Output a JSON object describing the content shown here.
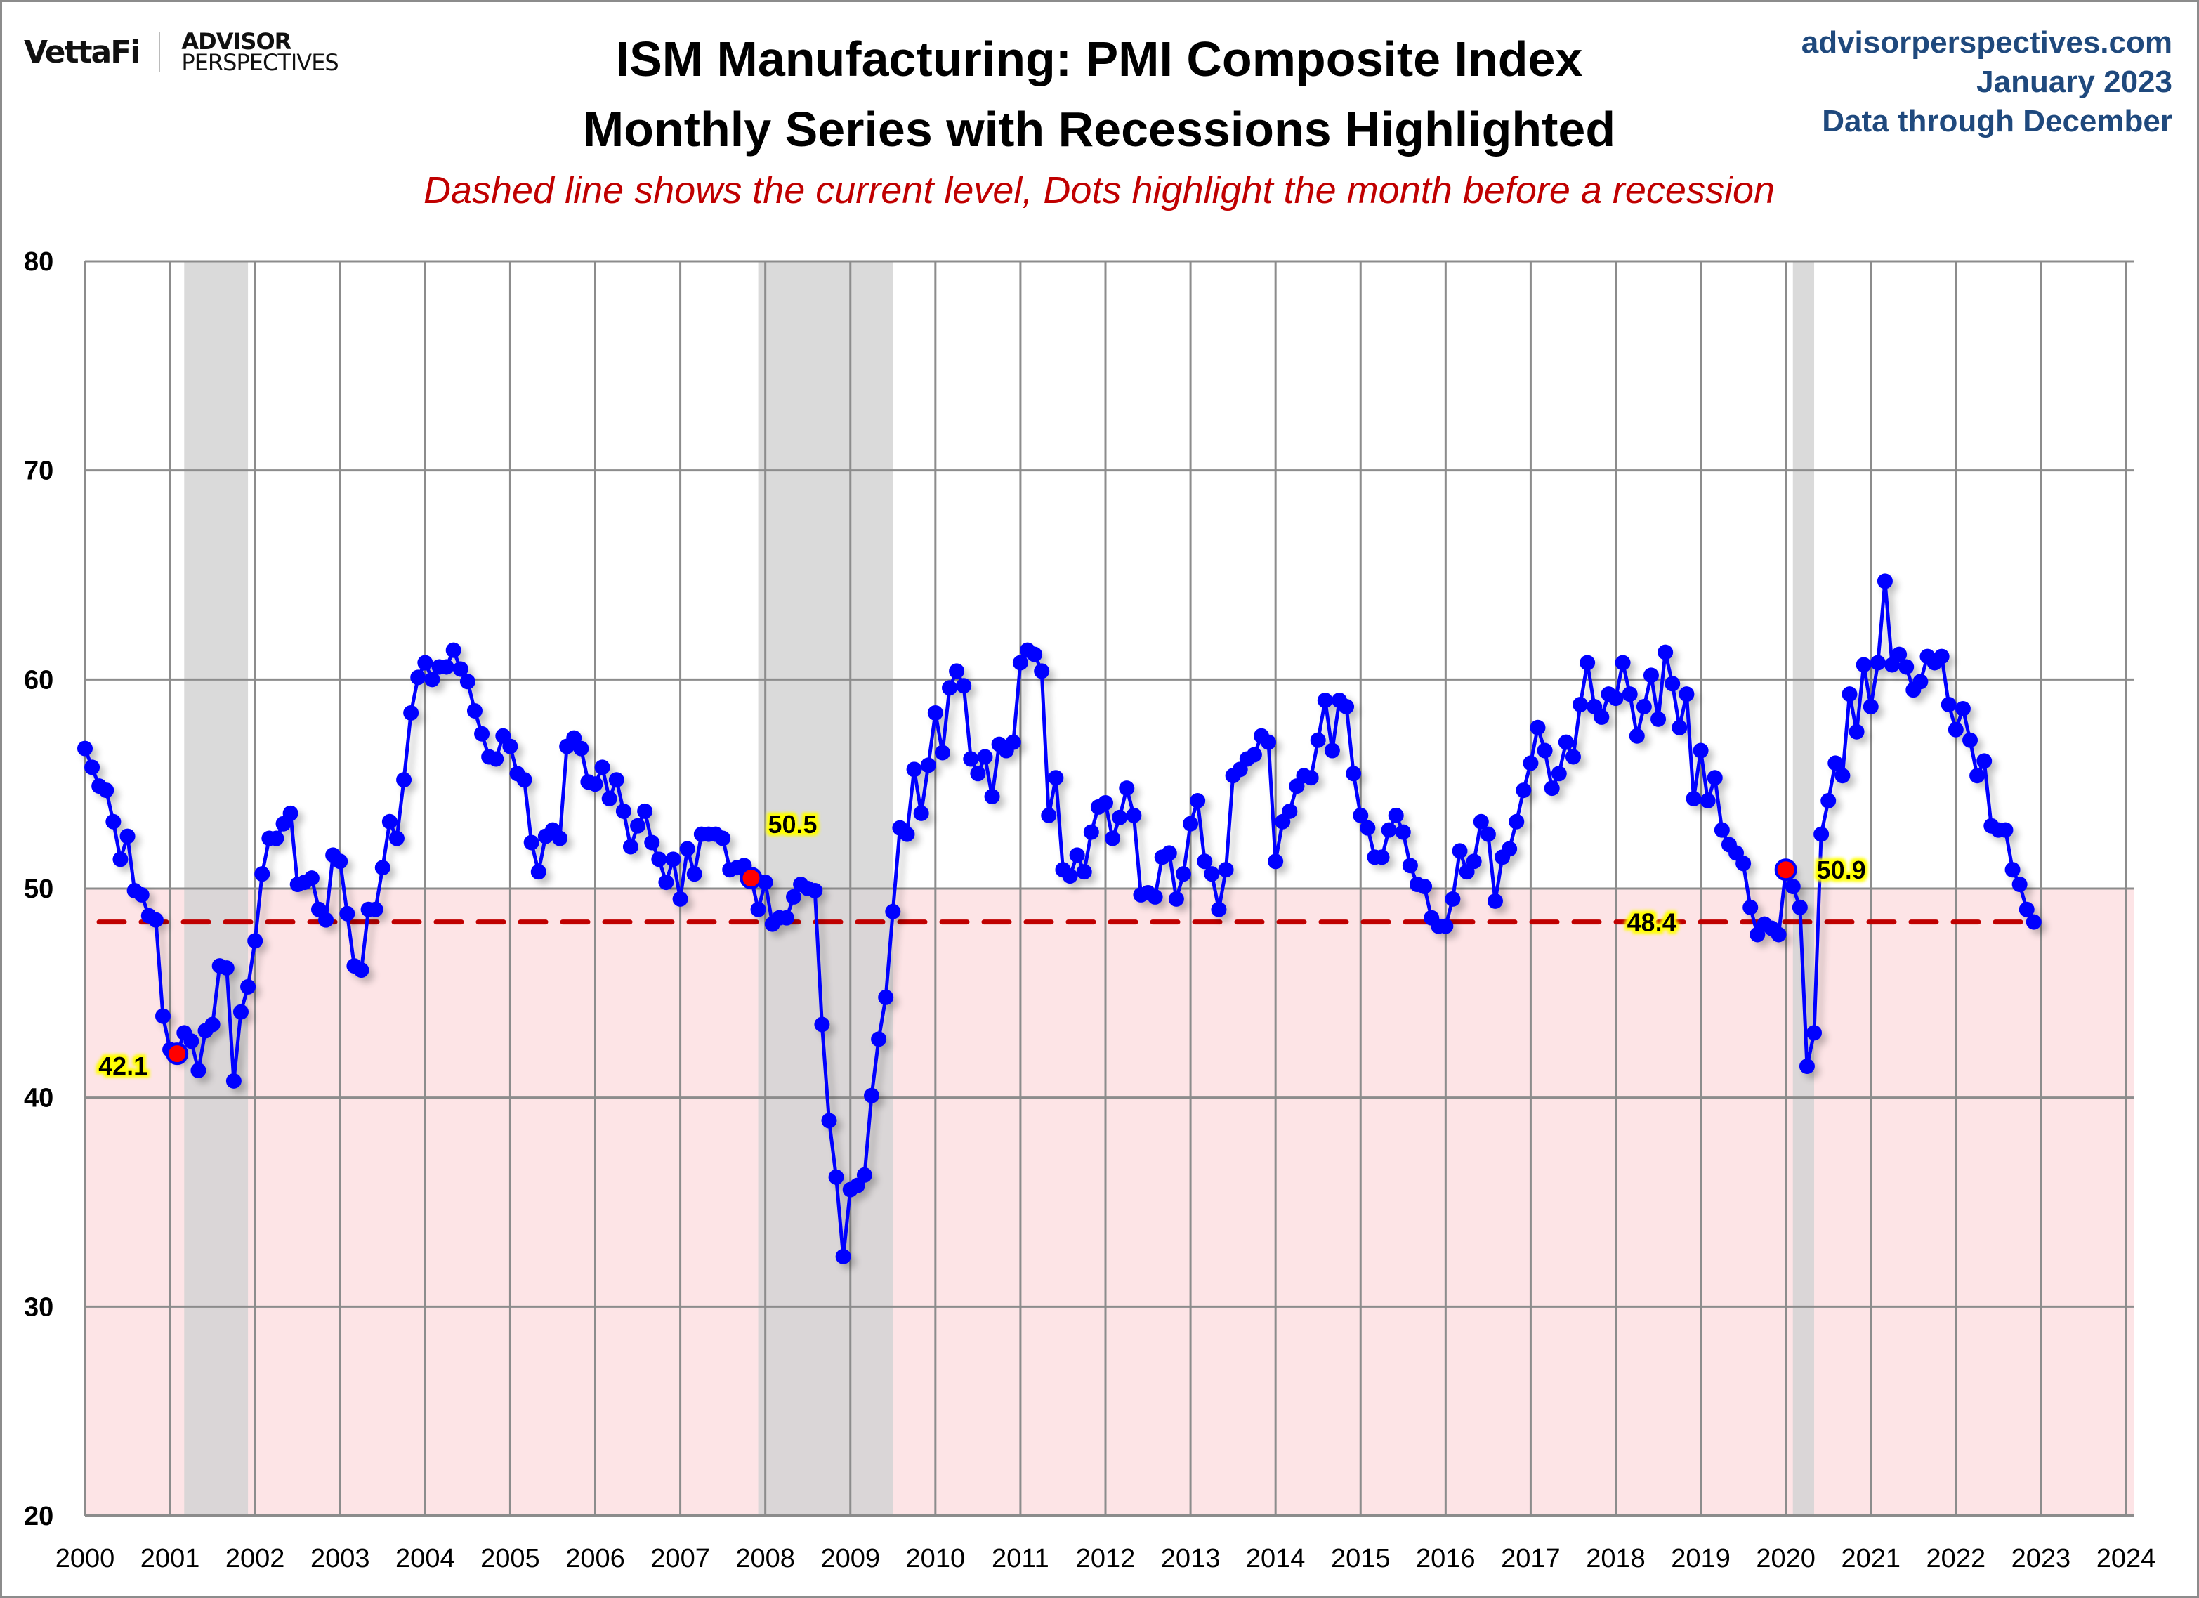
{
  "header": {
    "logo_primary": "VettaFi",
    "logo_secondary_top": "ADVISOR",
    "logo_secondary_bottom": "PERSPECTIVES",
    "title_line1": "ISM Manufacturing: PMI Composite Index",
    "title_line2": "Monthly Series with Recessions Highlighted",
    "subtitle": "Dashed line shows the current level, Dots highlight the month before a recession",
    "site": "advisorperspectives.com",
    "date": "January 2023",
    "data_through": "Data through December"
  },
  "colors": {
    "series": "#0000ff",
    "recession_shade": "#d3d3d3",
    "contraction_zone": "#fde4e6",
    "current_level_line": "#c00000",
    "pre_recession_dot": "#ff0000",
    "annotation_bg": "#ffff00",
    "grid": "#8c8c8c",
    "meta_text": "#1f497d",
    "subtitle_text": "#c00000"
  },
  "chart_data": {
    "type": "line",
    "title": "ISM Manufacturing: PMI Composite Index",
    "subtitle": "Monthly Series with Recessions Highlighted",
    "xlabel": "",
    "ylabel": "",
    "xlim": [
      2000,
      2024
    ],
    "ylim": [
      20,
      80
    ],
    "grid": true,
    "x_ticks": [
      "2000",
      "2001",
      "2002",
      "2003",
      "2004",
      "2005",
      "2006",
      "2007",
      "2008",
      "2009",
      "2010",
      "2011",
      "2012",
      "2013",
      "2014",
      "2015",
      "2016",
      "2017",
      "2018",
      "2019",
      "2020",
      "2021",
      "2022",
      "2023",
      "2024"
    ],
    "y_ticks": [
      "20",
      "30",
      "40",
      "50",
      "60",
      "70",
      "80"
    ],
    "start": "2000-01",
    "frequency": "monthly",
    "series": [
      {
        "name": "ISM Manufacturing PMI",
        "values": [
          56.7,
          55.8,
          54.9,
          54.7,
          53.2,
          51.4,
          52.5,
          49.9,
          49.7,
          48.7,
          48.5,
          43.9,
          42.3,
          42.1,
          43.1,
          42.7,
          41.3,
          43.2,
          43.5,
          46.3,
          46.2,
          40.8,
          44.1,
          45.3,
          47.5,
          50.7,
          52.4,
          52.4,
          53.1,
          53.6,
          50.2,
          50.3,
          50.5,
          49.0,
          48.5,
          51.6,
          51.3,
          48.8,
          46.3,
          46.1,
          49.0,
          49.0,
          51.0,
          53.2,
          52.4,
          55.2,
          58.4,
          60.1,
          60.8,
          60.0,
          60.6,
          60.6,
          61.4,
          60.5,
          59.9,
          58.5,
          57.4,
          56.3,
          56.2,
          57.3,
          56.8,
          55.5,
          55.2,
          52.2,
          50.8,
          52.5,
          52.8,
          52.4,
          56.8,
          57.2,
          56.7,
          55.1,
          55.0,
          55.8,
          54.3,
          55.2,
          53.7,
          52.0,
          53.0,
          53.7,
          52.2,
          51.4,
          50.3,
          51.4,
          49.5,
          51.9,
          50.7,
          52.6,
          52.6,
          52.6,
          52.4,
          50.9,
          51.0,
          51.1,
          50.5,
          49.0,
          50.3,
          48.3,
          48.6,
          48.6,
          49.6,
          50.2,
          50.0,
          49.9,
          43.5,
          38.9,
          36.2,
          32.4,
          35.6,
          35.8,
          36.3,
          40.1,
          42.8,
          44.8,
          48.9,
          52.9,
          52.6,
          55.7,
          53.6,
          55.9,
          58.4,
          56.5,
          59.6,
          60.4,
          59.7,
          56.2,
          55.5,
          56.3,
          54.4,
          56.9,
          56.6,
          57.0,
          60.8,
          61.4,
          61.2,
          60.4,
          53.5,
          55.3,
          50.9,
          50.6,
          51.6,
          50.8,
          52.7,
          53.9,
          54.1,
          52.4,
          53.4,
          54.8,
          53.5,
          49.7,
          49.8,
          49.6,
          51.5,
          51.7,
          49.5,
          50.7,
          53.1,
          54.2,
          51.3,
          50.7,
          49.0,
          50.9,
          55.4,
          55.7,
          56.2,
          56.4,
          57.3,
          57.0,
          51.3,
          53.2,
          53.7,
          54.9,
          55.4,
          55.3,
          57.1,
          59.0,
          56.6,
          59.0,
          58.7,
          55.5,
          53.5,
          52.9,
          51.5,
          51.5,
          52.8,
          53.5,
          52.7,
          51.1,
          50.2,
          50.1,
          48.6,
          48.2,
          48.2,
          49.5,
          51.8,
          50.8,
          51.3,
          53.2,
          52.6,
          49.4,
          51.5,
          51.9,
          53.2,
          54.7,
          56.0,
          57.7,
          56.6,
          54.8,
          55.5,
          57.0,
          56.3,
          58.8,
          60.8,
          58.7,
          58.2,
          59.3,
          59.1,
          60.8,
          59.3,
          57.3,
          58.7,
          60.2,
          58.1,
          61.3,
          59.8,
          57.7,
          59.3,
          54.3,
          56.6,
          54.2,
          55.3,
          52.8,
          52.1,
          51.7,
          51.2,
          49.1,
          47.8,
          48.3,
          48.1,
          47.8,
          50.9,
          50.1,
          49.1,
          41.5,
          43.1,
          52.6,
          54.2,
          56.0,
          55.4,
          59.3,
          57.5,
          60.7,
          58.7,
          60.8,
          64.7,
          60.7,
          61.2,
          60.6,
          59.5,
          59.9,
          61.1,
          60.8,
          61.1,
          58.8,
          57.6,
          58.6,
          57.1,
          55.4,
          56.1,
          53.0,
          52.8,
          52.8,
          50.9,
          50.2,
          49.0,
          48.4
        ]
      }
    ],
    "recessions": [
      {
        "start": "2001-03",
        "end": "2001-11"
      },
      {
        "start": "2007-12",
        "end": "2009-06"
      },
      {
        "start": "2020-02",
        "end": "2020-04"
      }
    ],
    "contraction_threshold": 50,
    "current_level": {
      "value": 48.4,
      "label": "48.4"
    },
    "pre_recession_markers": [
      {
        "date": "2001-02",
        "value": 42.1,
        "label": "42.1",
        "label_position": "left"
      },
      {
        "date": "2007-11",
        "value": 50.5,
        "label": "50.5",
        "label_position": "above-right"
      },
      {
        "date": "2020-01",
        "value": 50.9,
        "label": "50.9",
        "label_position": "right"
      }
    ],
    "legend": "none"
  }
}
